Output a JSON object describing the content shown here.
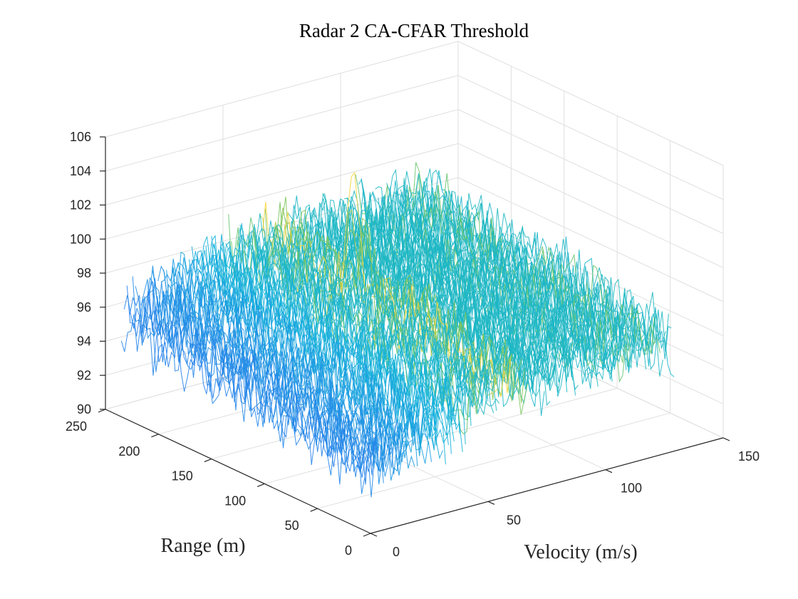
{
  "chart_data": {
    "type": "surface",
    "title": "Radar 2 CA-CFAR Threshold",
    "xlabel": "Velocity (m/s)",
    "ylabel": "Range (m)",
    "zlabel": "",
    "x_axis": {
      "label": "Velocity (m/s)",
      "lim": [
        0,
        150
      ],
      "ticks": [
        "0",
        "50",
        "100",
        "150"
      ]
    },
    "y_axis": {
      "label": "Range (m)",
      "lim": [
        0,
        250
      ],
      "ticks": [
        "0",
        "50",
        "100",
        "150",
        "200",
        "250"
      ]
    },
    "z_axis": {
      "lim": [
        90,
        106
      ],
      "ticks": [
        "90",
        "92",
        "94",
        "96",
        "98",
        "100",
        "102",
        "104",
        "106"
      ]
    },
    "grid": "on",
    "colormap": "parula",
    "colors": [
      "#3e26a8",
      "#2d6ff0",
      "#12b2da",
      "#35c196",
      "#a0c740",
      "#f9d63a"
    ],
    "surface": {
      "data_extent": {
        "velocity": [
          0,
          130
        ],
        "range": [
          0,
          235
        ]
      },
      "baseline_threshold": 96.5,
      "near_edge_threshold": 93.5,
      "far_edge_threshold": 98.5,
      "noise_amplitude": 1.6,
      "peaks": [
        {
          "velocity": 60,
          "range": 150,
          "threshold": 104.2
        },
        {
          "velocity": 66,
          "range": 150,
          "threshold": 102.2
        }
      ]
    }
  }
}
